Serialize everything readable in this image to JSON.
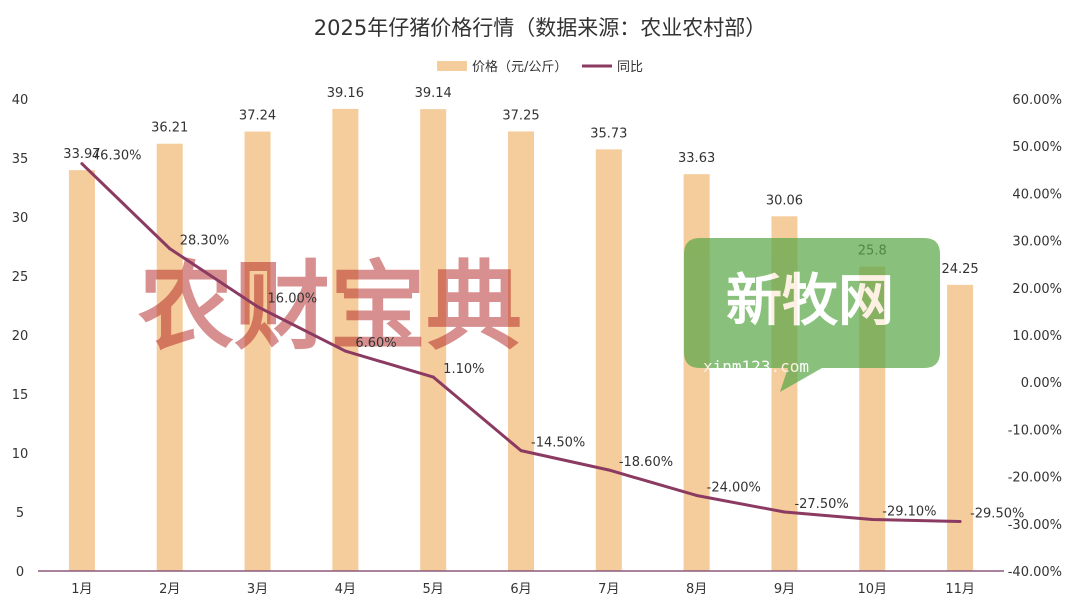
{
  "chart_data": {
    "type": "bar",
    "title": "2025年仔猪价格行情（数据来源：农业农村部）",
    "categories": [
      "1月",
      "2月",
      "3月",
      "4月",
      "5月",
      "6月",
      "7月",
      "8月",
      "9月",
      "10月",
      "11月"
    ],
    "series": [
      {
        "name": "价格（元/公斤）",
        "type": "bar",
        "axis": "left",
        "color": "#F5CC9B",
        "values": [
          33.97,
          36.21,
          37.24,
          39.16,
          39.14,
          37.25,
          35.73,
          33.63,
          30.06,
          25.8,
          24.25
        ],
        "labels": [
          "33.97",
          "36.21",
          "37.24",
          "39.16",
          "39.14",
          "37.25",
          "35.73",
          "33.63",
          "30.06",
          "25.8",
          "24.25"
        ]
      },
      {
        "name": "同比",
        "type": "line",
        "axis": "right",
        "color": "#8B3A62",
        "values": [
          46.3,
          28.3,
          16.0,
          6.6,
          1.1,
          -14.5,
          -18.6,
          -24.0,
          -27.5,
          -29.1,
          -29.5
        ],
        "labels": [
          "46.30%",
          "28.30%",
          "16.00%",
          "6.60%",
          "1.10%",
          "-14.50%",
          "-18.60%",
          "-24.00%",
          "-27.50%",
          "-29.10%",
          "-29.50%"
        ]
      }
    ],
    "y_left": {
      "min": 0,
      "max": 40,
      "ticks": [
        "0",
        "5",
        "10",
        "15",
        "20",
        "25",
        "30",
        "35",
        "40"
      ]
    },
    "y_right": {
      "min": -40,
      "max": 60,
      "ticks": [
        "-40.00%",
        "-30.00%",
        "-20.00%",
        "-10.00%",
        "0.00%",
        "10.00%",
        "20.00%",
        "30.00%",
        "40.00%",
        "50.00%",
        "60.00%"
      ]
    },
    "grid": false,
    "legend_position": "top-center"
  },
  "watermarks": {
    "left_text": "农财宝典",
    "right_text": "新牧网",
    "right_url": "xinm123.com",
    "left_color": "#B22222",
    "right_color": "#5BA84A"
  }
}
